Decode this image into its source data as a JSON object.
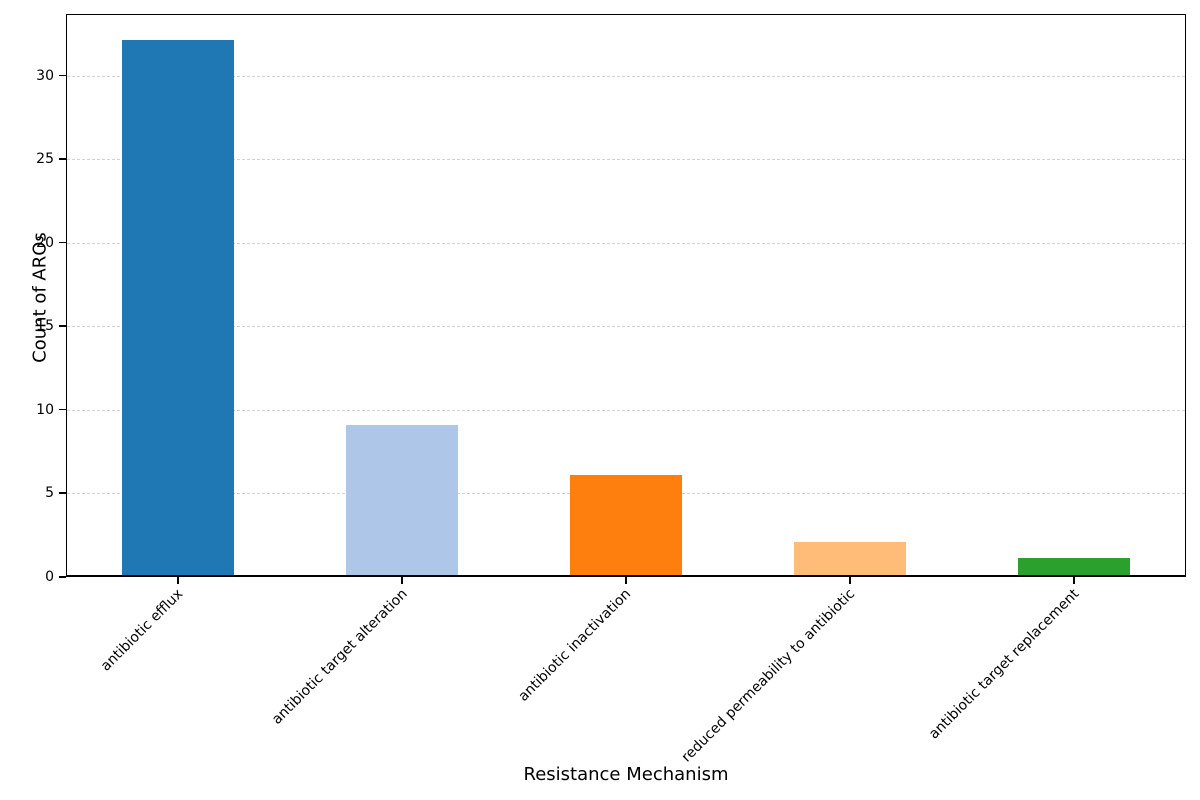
{
  "chart_data": {
    "type": "bar",
    "title": "",
    "xlabel": "Resistance Mechanism",
    "ylabel": "Count of AROs",
    "categories": [
      "antibiotic efflux",
      "antibiotic target alteration",
      "antibiotic inactivation",
      "reduced permeability to antibiotic",
      "antibiotic target replacement"
    ],
    "values": [
      32,
      9,
      6,
      2,
      1
    ],
    "bar_colors": [
      "#1f77b4",
      "#aec7e8",
      "#ff7f0e",
      "#ffbb78",
      "#2ca02c"
    ],
    "yticks": [
      0,
      5,
      10,
      15,
      20,
      25,
      30
    ],
    "ylim": [
      0,
      33.7
    ],
    "grid": "horizontal-dashed",
    "gridline_color": "#d3d3d3",
    "x_tick_rotation_deg": 45,
    "legend": "none"
  }
}
